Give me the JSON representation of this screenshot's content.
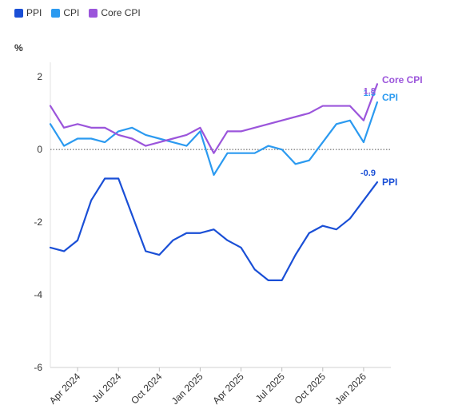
{
  "chart_data": {
    "type": "line",
    "ylabel": "%",
    "ylim": [
      -6,
      2.4
    ],
    "yticks": [
      2,
      0,
      -2,
      -4,
      -6
    ],
    "x": [
      "2024-02",
      "2024-03",
      "2024-04",
      "2024-05",
      "2024-06",
      "2024-07",
      "2024-08",
      "2024-09",
      "2024-10",
      "2024-11",
      "2024-12",
      "2025-01",
      "2025-02",
      "2025-03",
      "2025-04",
      "2025-05",
      "2025-06",
      "2025-07",
      "2025-08",
      "2025-09",
      "2025-10",
      "2025-11",
      "2025-12",
      "2026-01",
      "2026-02",
      "2026-03"
    ],
    "xtick_labels": [
      "Apr 2024",
      "Jul 2024",
      "Oct 2024",
      "Jan 2025",
      "Apr 2025",
      "Jul 2025",
      "Oct 2025",
      "Jan 2026"
    ],
    "xtick_indices": [
      2,
      5,
      8,
      11,
      14,
      17,
      20,
      23
    ],
    "series": [
      {
        "name": "PPI",
        "color": "#1a4fd6",
        "end_value_label": "-0.9",
        "end_label": "PPI",
        "values": [
          -2.7,
          -2.8,
          -2.5,
          -1.4,
          -0.8,
          -0.8,
          -1.8,
          -2.8,
          -2.9,
          -2.5,
          -2.3,
          -2.3,
          -2.2,
          -2.5,
          -2.7,
          -3.3,
          -3.6,
          -3.6,
          -2.9,
          -2.3,
          -2.1,
          -2.2,
          -1.9,
          -1.4,
          -0.9,
          null
        ]
      },
      {
        "name": "CPI",
        "color": "#2b9af0",
        "end_value_label": "1.3",
        "end_label": "CPI",
        "values": [
          0.7,
          0.1,
          0.3,
          0.3,
          0.2,
          0.5,
          0.6,
          0.4,
          0.3,
          0.2,
          0.1,
          0.5,
          -0.7,
          -0.1,
          -0.1,
          -0.1,
          0.1,
          0.0,
          -0.4,
          -0.3,
          0.2,
          0.7,
          0.8,
          0.2,
          1.3,
          null
        ]
      },
      {
        "name": "Core CPI",
        "color": "#9b55db",
        "end_value_label": "1.8",
        "end_label": "Core CPI",
        "values": [
          1.2,
          0.6,
          0.7,
          0.6,
          0.6,
          0.4,
          0.3,
          0.1,
          0.2,
          0.3,
          0.4,
          0.6,
          -0.1,
          0.5,
          0.5,
          null,
          null,
          null,
          null,
          1.0,
          1.2,
          1.2,
          1.2,
          0.8,
          1.8,
          null
        ]
      }
    ],
    "grid": false,
    "zero_line": "dotted",
    "legend_position": "top-left"
  }
}
